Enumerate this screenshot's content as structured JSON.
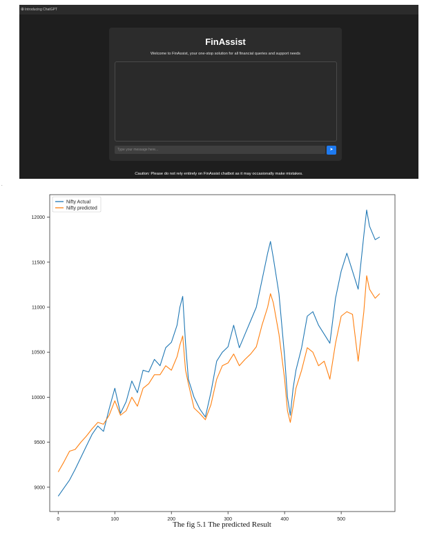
{
  "screenshot": {
    "tab_title": "Introducing ChatGPT",
    "app_title": "FinAssist",
    "welcome": "Welcome to FinAssist, your one-stop solution for all financial queries and support needs",
    "input_placeholder": "Type your message here...",
    "send_icon": "send-arrow-icon",
    "caution_label": "Caution:",
    "caution_text": "Please do not rely entirely on FinAssist chatbot as it may occasionally make mistakes.",
    "colors": {
      "background": "#1e1e1e",
      "card": "#2c2c2c",
      "send_button": "#1e7af0"
    }
  },
  "page_mark": ".",
  "caption": "The fig 5.1 The predicted Result",
  "chart_data": {
    "type": "line",
    "title": "",
    "xlabel": "",
    "ylabel": "",
    "xlim": [
      -15,
      595
    ],
    "ylim": [
      8730,
      12250
    ],
    "x_ticks": [
      0,
      100,
      200,
      300,
      400,
      500
    ],
    "y_ticks": [
      9000,
      9500,
      10000,
      10500,
      11000,
      11500,
      12000
    ],
    "legend": "top-left",
    "grid": false,
    "series": [
      {
        "name": "Nifty Actual",
        "color": "#1f77b4",
        "x": [
          0,
          10,
          20,
          30,
          40,
          50,
          60,
          70,
          80,
          90,
          100,
          110,
          120,
          130,
          140,
          150,
          160,
          170,
          180,
          190,
          200,
          210,
          215,
          220,
          225,
          230,
          240,
          250,
          260,
          270,
          280,
          290,
          300,
          310,
          320,
          330,
          340,
          350,
          360,
          370,
          375,
          380,
          390,
          400,
          405,
          410,
          415,
          420,
          430,
          440,
          450,
          460,
          470,
          480,
          490,
          500,
          510,
          520,
          530,
          540,
          545,
          550,
          560,
          568
        ],
        "y": [
          8900,
          8990,
          9080,
          9200,
          9330,
          9460,
          9590,
          9680,
          9620,
          9870,
          10100,
          9820,
          9950,
          10180,
          10050,
          10300,
          10280,
          10420,
          10350,
          10550,
          10610,
          10800,
          11000,
          11120,
          10600,
          10200,
          10000,
          9870,
          9780,
          10060,
          10400,
          10500,
          10560,
          10800,
          10550,
          10700,
          10850,
          11000,
          11300,
          11600,
          11730,
          11550,
          11150,
          10450,
          10000,
          9800,
          10100,
          10300,
          10550,
          10900,
          10950,
          10800,
          10700,
          10600,
          11100,
          11400,
          11600,
          11400,
          11200,
          11800,
          12080,
          11900,
          11750,
          11780
        ]
      },
      {
        "name": "Nifty predicted",
        "color": "#ff7f0e",
        "x": [
          0,
          10,
          20,
          30,
          40,
          50,
          60,
          70,
          80,
          90,
          100,
          110,
          120,
          130,
          140,
          150,
          160,
          170,
          180,
          190,
          200,
          210,
          215,
          220,
          225,
          230,
          240,
          250,
          260,
          270,
          280,
          290,
          300,
          310,
          320,
          330,
          340,
          350,
          360,
          370,
          375,
          380,
          390,
          400,
          405,
          410,
          415,
          420,
          430,
          440,
          450,
          460,
          470,
          480,
          490,
          500,
          510,
          520,
          530,
          540,
          545,
          550,
          560,
          568
        ],
        "y": [
          9170,
          9280,
          9400,
          9420,
          9500,
          9570,
          9650,
          9720,
          9700,
          9800,
          9960,
          9800,
          9850,
          10000,
          9900,
          10100,
          10150,
          10250,
          10250,
          10350,
          10300,
          10450,
          10580,
          10680,
          10300,
          10150,
          9880,
          9820,
          9750,
          9920,
          10200,
          10350,
          10380,
          10480,
          10350,
          10420,
          10480,
          10560,
          10800,
          11000,
          11150,
          11050,
          10700,
          10200,
          9850,
          9720,
          9900,
          10100,
          10300,
          10550,
          10500,
          10350,
          10400,
          10200,
          10600,
          10900,
          10950,
          10920,
          10400,
          10950,
          11350,
          11200,
          11100,
          11150
        ]
      }
    ]
  }
}
